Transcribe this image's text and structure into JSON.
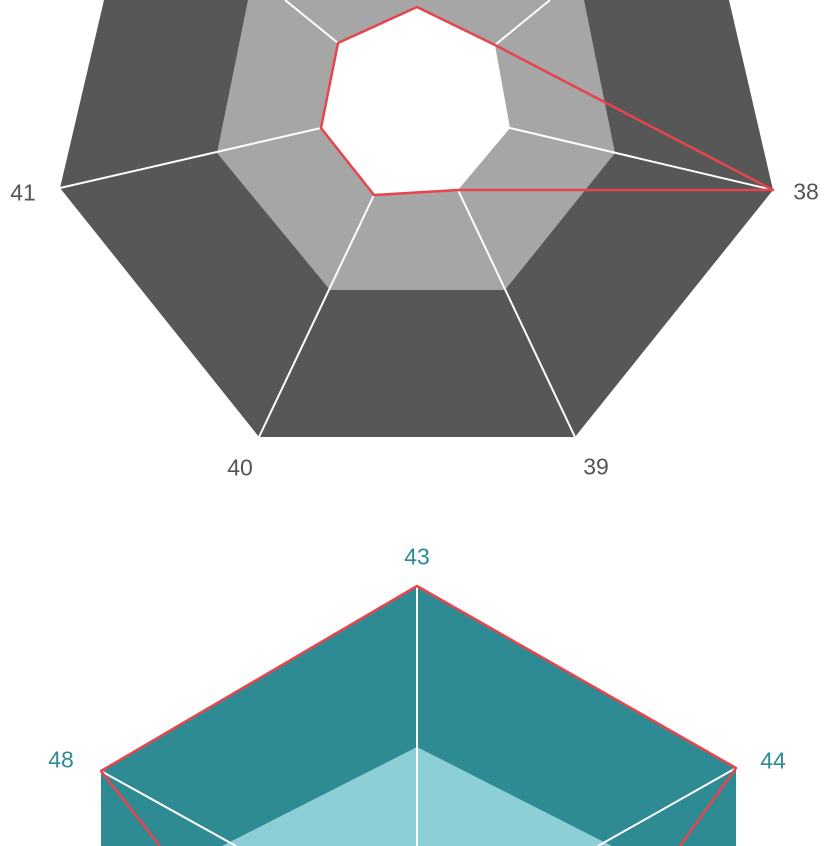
{
  "heptagon": {
    "vertex_labels": {
      "v38": "38",
      "v39": "39",
      "v40": "40",
      "v41": "41"
    },
    "colors": {
      "outer_band": "#575757",
      "inner_band": "#a6a6a6",
      "center_hole": "#ffffff",
      "spokes": "#ffffff",
      "highlight_path": "#e8444e",
      "label": "#555555"
    }
  },
  "hexagon": {
    "vertex_labels": {
      "v43": "43",
      "v44": "44",
      "v48": "48"
    },
    "colors": {
      "outer_band": "#2f8b93",
      "inner_band": "#8ccfd6",
      "spokes": "#ffffff",
      "highlight_path": "#e8444e",
      "label": "#2f8b93"
    }
  }
}
